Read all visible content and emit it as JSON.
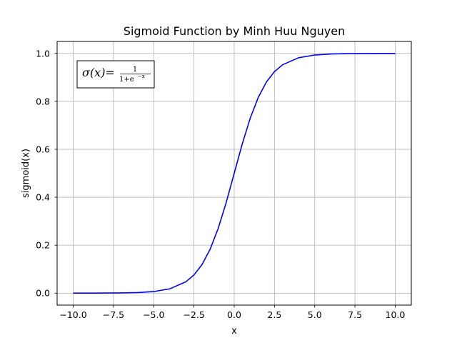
{
  "chart_data": {
    "type": "line",
    "title": "Sigmoid Function by Minh Huu Nguyen",
    "xlabel": "x",
    "ylabel": "sigmoid(x)",
    "xlim": [
      -11.0,
      11.0
    ],
    "ylim": [
      -0.05,
      1.05
    ],
    "xticks": [
      -10.0,
      -7.5,
      -5.0,
      -2.5,
      0.0,
      2.5,
      5.0,
      7.5,
      10.0
    ],
    "xtick_labels": [
      "−10.0",
      "−7.5",
      "−5.0",
      "−2.5",
      "0.0",
      "2.5",
      "5.0",
      "7.5",
      "10.0"
    ],
    "yticks": [
      0.0,
      0.2,
      0.4,
      0.6,
      0.8,
      1.0
    ],
    "ytick_labels": [
      "0.0",
      "0.2",
      "0.4",
      "0.6",
      "0.8",
      "1.0"
    ],
    "grid": true,
    "legend": false,
    "series": [
      {
        "color": "#0000ff",
        "x": [
          -10,
          -9,
          -8,
          -7,
          -6,
          -5,
          -4,
          -3,
          -2.5,
          -2,
          -1.5,
          -1,
          -0.5,
          0,
          0.5,
          1,
          1.5,
          2,
          2.5,
          3,
          4,
          5,
          6,
          7,
          8,
          9,
          10
        ],
        "y": [
          4.54e-05,
          0.0001234,
          0.0003354,
          0.000911,
          0.002473,
          0.006693,
          0.017986,
          0.047426,
          0.075858,
          0.119203,
          0.182426,
          0.268941,
          0.377541,
          0.5,
          0.622459,
          0.731059,
          0.817574,
          0.880797,
          0.924142,
          0.952574,
          0.982014,
          0.993307,
          0.997527,
          0.999089,
          0.999665,
          0.999877,
          0.999955
        ]
      }
    ],
    "annotation": {
      "text_left": "σ(x)=",
      "numerator": "1",
      "denominator_base": "1+e",
      "denominator_exp": "−x",
      "position": "top-left"
    }
  }
}
